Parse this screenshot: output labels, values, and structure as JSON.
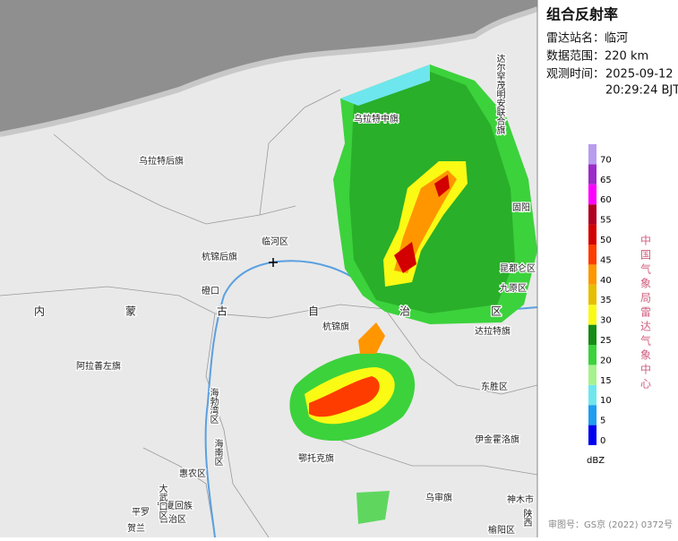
{
  "panel": {
    "title": "组合反射率",
    "station": "雷达站名：临河",
    "range": "数据范围：220 km",
    "time_label": "观测时间：",
    "date": "2025-09-12",
    "time": "20:29:24 BJT"
  },
  "colorbar": {
    "ticks": [
      0,
      5,
      10,
      15,
      20,
      25,
      30,
      35,
      40,
      45,
      50,
      55,
      60,
      65,
      70
    ],
    "colors": [
      "#0000f0",
      "#1e9ef0",
      "#6ee6ee",
      "#a6f28e",
      "#3cd23c",
      "#168c16",
      "#fafa14",
      "#e6be00",
      "#ff9600",
      "#ff3c00",
      "#d20000",
      "#b00020",
      "#ff00ff",
      "#9c2cc8",
      "#b89cf0"
    ],
    "unit": "dBZ"
  },
  "credit": "中国气象局雷达气象中心",
  "map_number": "审图号：GS京 (2022) 0372号",
  "map_labels": [
    "乌拉特后旗",
    "乌拉特中旗",
    "临河区",
    "杭锦后旗",
    "磴口",
    "阿拉善左旗",
    "杭锦旗",
    "达拉特旗",
    "东胜区",
    "伊金霍洛旗",
    "鄂托克旗",
    "乌审旗",
    "惠农区",
    "平罗",
    "贺兰",
    "宁夏回族",
    "自治区",
    "固阳",
    "昆都仑区",
    "九原区",
    "神木市",
    "榆阳区"
  ],
  "vertical_labels": [
    "达尔罕茂明安联合旗",
    "海勃湾区",
    "海南区",
    "大武口区",
    "陕西"
  ],
  "region_label": "内蒙古自治区"
}
